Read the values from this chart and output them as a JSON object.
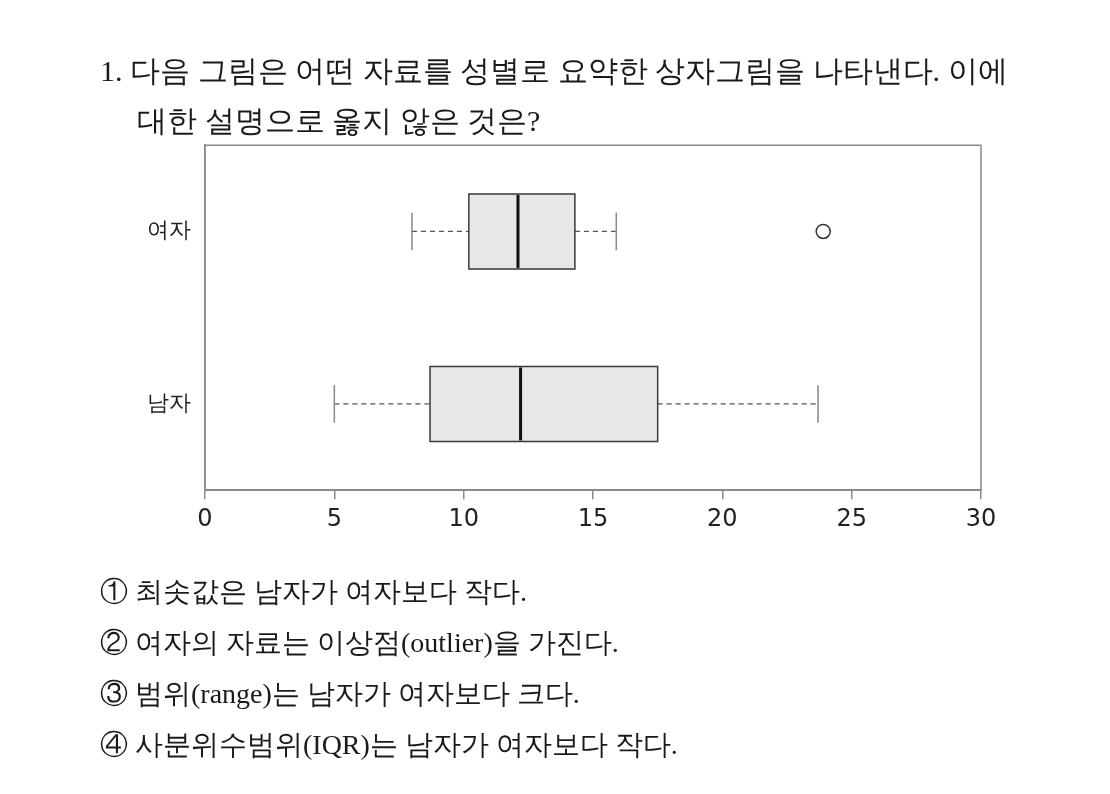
{
  "chart_data": {
    "type": "box",
    "orientation": "horizontal",
    "title": "1. 다음 그림은 어떤 자료를 성별로 요약한 상자그림을 나타낸다. 이에 대한 설명으로 옳지 않은 것은?",
    "categories": [
      "여자",
      "남자"
    ],
    "boxes": [
      {
        "low": 8.0,
        "q1": 10.2,
        "median": 12.1,
        "q3": 14.3,
        "high": 15.9,
        "outliers": [
          23.9
        ]
      },
      {
        "low": 5.0,
        "q1": 8.7,
        "median": 12.2,
        "q3": 17.5,
        "high": 23.7
      }
    ],
    "color": "#e6e7e9",
    "xlim": [
      0,
      30
    ],
    "xticks": [
      0,
      5,
      10,
      15,
      20,
      25,
      30
    ],
    "grid": false,
    "legend": false,
    "annotations": [
      "① 최솟값은 남자가 여자보다 작다.",
      "② 여자의 자료는 이상점(outlier)을 가진다.",
      "③ 범위(range)는 남자가 여자보다 크다.",
      "④ 사분위수범위(IQR)는 남자가 여자보다 작다."
    ]
  }
}
